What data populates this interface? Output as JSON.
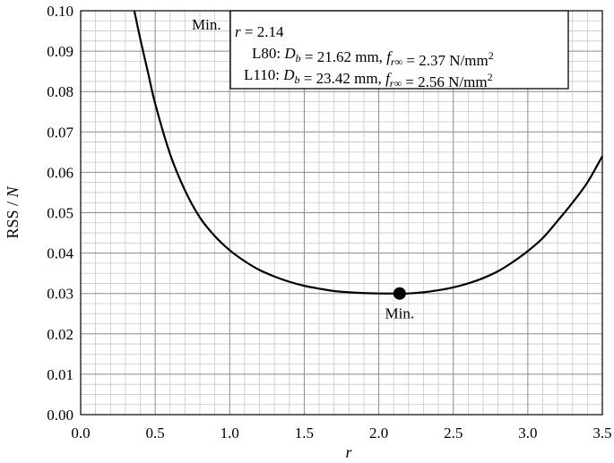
{
  "chart_data": {
    "type": "line",
    "xlabel": "r",
    "ylabel": "RSS / N",
    "xlim": [
      0,
      3.5
    ],
    "ylim": [
      0,
      0.1
    ],
    "x_ticks": [
      "0.0",
      "0.5",
      "1.0",
      "1.5",
      "2.0",
      "2.5",
      "3.0",
      "3.5"
    ],
    "y_ticks": [
      "0.00",
      "0.01",
      "0.02",
      "0.03",
      "0.04",
      "0.05",
      "0.06",
      "0.07",
      "0.08",
      "0.09",
      "0.10"
    ],
    "grid": true,
    "series": [
      {
        "x": [
          0.36,
          0.4,
          0.45,
          0.5,
          0.6,
          0.7,
          0.8,
          0.9,
          1.0,
          1.1,
          1.2,
          1.3,
          1.4,
          1.5,
          1.6,
          1.7,
          1.8,
          1.9,
          2.0,
          2.1,
          2.14,
          2.2,
          2.3,
          2.4,
          2.5,
          2.6,
          2.7,
          2.8,
          2.9,
          3.0,
          3.1,
          3.2,
          3.3,
          3.4,
          3.5
        ],
        "y": [
          0.1,
          0.093,
          0.085,
          0.077,
          0.0645,
          0.0555,
          0.0488,
          0.0442,
          0.0407,
          0.038,
          0.0358,
          0.0342,
          0.0329,
          0.0319,
          0.0312,
          0.0306,
          0.0303,
          0.0301,
          0.03,
          0.03,
          0.03,
          0.03,
          0.0303,
          0.0308,
          0.0315,
          0.0325,
          0.0338,
          0.0355,
          0.0378,
          0.0405,
          0.0437,
          0.048,
          0.0525,
          0.0575,
          0.064
        ]
      }
    ],
    "minimum_point": {
      "x": 2.14,
      "y": 0.03,
      "label": "Min."
    },
    "annotation": {
      "prefix": "Min.",
      "r_line": "r = 2.14",
      "line1": "L80: D_b = 21.62 mm, f_r∞ = 2.37 N/mm²",
      "line2": "L110: D_b = 23.42 mm, f_r∞ = 2.56 N/mm²"
    }
  }
}
